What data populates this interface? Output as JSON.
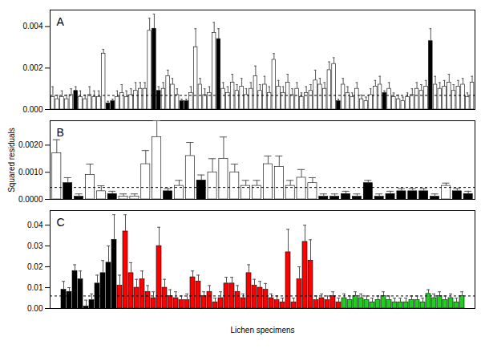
{
  "chart_data": [
    {
      "type": "bar",
      "title": "A",
      "categories": [
        null,
        null,
        null,
        null,
        null,
        null,
        null,
        null,
        null,
        null,
        null,
        null,
        null,
        null,
        null,
        null,
        null,
        null,
        null,
        null,
        null,
        null,
        null,
        null,
        null,
        null,
        null,
        null,
        null,
        null,
        null,
        null,
        null,
        null,
        null,
        null,
        null,
        null,
        null,
        null,
        null,
        null,
        null,
        null,
        null,
        null,
        null,
        null,
        null,
        null,
        null,
        null,
        null,
        null,
        null,
        null,
        null,
        null,
        null,
        null,
        null,
        null,
        null,
        null,
        null,
        null,
        null,
        null,
        null,
        null,
        null,
        null,
        null,
        null,
        null,
        null,
        null,
        null,
        null,
        null,
        null,
        null,
        null,
        null,
        null,
        null,
        null,
        null,
        null,
        null,
        null,
        null
      ],
      "values": [
        0.0006,
        0.0005,
        0.0006,
        0.0005,
        0.0007,
        0.0009,
        0.0006,
        0.0005,
        0.0007,
        0.0006,
        0.0006,
        0.0027,
        0.0003,
        0.0004,
        0.0006,
        0.0008,
        0.0006,
        0.0007,
        0.0009,
        0.001,
        0.001,
        0.0038,
        0.0039,
        0.0009,
        0.001,
        0.0016,
        0.0012,
        0.0007,
        0.0004,
        0.0004,
        0.0008,
        0.003,
        0.0012,
        0.0007,
        0.0008,
        0.0037,
        0.0034,
        0.001,
        0.0008,
        0.0013,
        0.0009,
        0.0011,
        0.0007,
        0.001,
        0.0016,
        0.0009,
        0.0012,
        0.0008,
        0.0024,
        0.0011,
        0.0008,
        0.0013,
        0.0007,
        0.001,
        0.0006,
        0.0008,
        0.0009,
        0.0014,
        0.0012,
        0.001,
        0.0019,
        0.0022,
        0.0004,
        0.0012,
        0.0008,
        0.0006,
        0.001,
        0.0005,
        0.0004,
        0.0007,
        0.0011,
        0.0012,
        0.0008,
        0.001,
        0.0006,
        0.0005,
        0.0004,
        0.0006,
        0.0007,
        0.001,
        0.0009,
        0.0011,
        0.0033,
        0.0012,
        0.001,
        0.0011,
        0.0013,
        0.0009,
        0.0011,
        0.0012,
        0.0006,
        0.0013
      ],
      "errors": [
        0.0005,
        0.0002,
        0.0003,
        0.0002,
        0.0003,
        0.0002,
        0.0003,
        0.0002,
        0.0004,
        0.0003,
        0.0003,
        0.0002,
        0.0001,
        0.0001,
        0.0003,
        0.0004,
        0.0003,
        0.0003,
        0.0004,
        0.0003,
        0.0003,
        0.0006,
        0.0007,
        0.0002,
        0.0003,
        0.0003,
        0.0003,
        0.0003,
        0.0001,
        0.0001,
        0.0003,
        0.0009,
        0.0003,
        0.0003,
        0.0003,
        0.0005,
        0.0005,
        0.0003,
        0.0003,
        0.0004,
        0.0003,
        0.0004,
        0.0003,
        0.0003,
        0.0005,
        0.0003,
        0.0004,
        0.0003,
        0.0003,
        0.0003,
        0.0003,
        0.0004,
        0.0003,
        0.0003,
        0.0002,
        0.0003,
        0.0003,
        0.0005,
        0.0003,
        0.0003,
        0.0004,
        0.0003,
        0.0001,
        0.0003,
        0.0003,
        0.0002,
        0.0003,
        0.0002,
        0.0002,
        0.0003,
        0.0003,
        0.0004,
        0.0001,
        0.0003,
        0.0002,
        0.0002,
        0.0002,
        0.0002,
        0.0003,
        0.0003,
        0.0003,
        0.0003,
        0.0006,
        0.0004,
        0.0003,
        0.0003,
        0.0004,
        0.0003,
        0.0003,
        0.0003,
        0.0002,
        0.0003
      ],
      "colors": [
        "#ffffff",
        "#ffffff",
        "#ffffff",
        "#ffffff",
        "#ffffff",
        "#000000",
        "#ffffff",
        "#ffffff",
        "#ffffff",
        "#ffffff",
        "#ffffff",
        "#ffffff",
        "#000000",
        "#000000",
        "#ffffff",
        "#ffffff",
        "#ffffff",
        "#ffffff",
        "#ffffff",
        "#ffffff",
        "#ffffff",
        "#ffffff",
        "#000000",
        "#000000",
        "#ffffff",
        "#ffffff",
        "#ffffff",
        "#ffffff",
        "#000000",
        "#000000",
        "#ffffff",
        "#ffffff",
        "#ffffff",
        "#ffffff",
        "#ffffff",
        "#ffffff",
        "#000000",
        "#ffffff",
        "#ffffff",
        "#ffffff",
        "#ffffff",
        "#ffffff",
        "#ffffff",
        "#ffffff",
        "#ffffff",
        "#ffffff",
        "#ffffff",
        "#ffffff",
        "#ffffff",
        "#ffffff",
        "#ffffff",
        "#ffffff",
        "#ffffff",
        "#ffffff",
        "#ffffff",
        "#ffffff",
        "#ffffff",
        "#ffffff",
        "#ffffff",
        "#ffffff",
        "#ffffff",
        "#ffffff",
        "#000000",
        "#ffffff",
        "#ffffff",
        "#ffffff",
        "#ffffff",
        "#ffffff",
        "#ffffff",
        "#ffffff",
        "#ffffff",
        "#ffffff",
        "#000000",
        "#ffffff",
        "#ffffff",
        "#ffffff",
        "#ffffff",
        "#ffffff",
        "#ffffff",
        "#ffffff",
        "#ffffff",
        "#ffffff",
        "#000000",
        "#ffffff",
        "#ffffff",
        "#ffffff",
        "#ffffff",
        "#ffffff",
        "#ffffff",
        "#ffffff",
        "#ffffff",
        "#ffffff"
      ],
      "reference_line": 0.00068,
      "ylim": [
        0,
        0.0048
      ],
      "yticks": [
        {
          "value": 0,
          "label": "0.000"
        },
        0.002,
        0.004
      ],
      "tick_labels": "y"
    },
    {
      "type": "bar",
      "title": "B",
      "y_label": "Squared residuals",
      "categories": [
        null,
        null,
        null,
        null,
        null,
        null,
        null,
        null,
        null,
        null,
        null,
        null,
        null,
        null,
        null,
        null,
        null,
        null,
        null,
        null,
        null,
        null,
        null,
        null,
        null,
        null,
        null,
        null,
        null,
        null,
        null,
        null,
        null,
        null,
        null,
        null,
        null,
        null
      ],
      "values": [
        0.0017,
        0.0006,
        0.0001,
        0.0009,
        0.0003,
        0.0002,
        0.0001,
        0.0001,
        0.0013,
        0.0023,
        0.0003,
        0.0005,
        0.0016,
        0.0007,
        0.001,
        0.0015,
        0.001,
        0.0005,
        0.0005,
        0.0013,
        0.0012,
        0.0005,
        0.0008,
        0.0006,
        0.0001,
        0.0001,
        0.0002,
        0.0001,
        0.0006,
        0.0001,
        0.0002,
        0.0003,
        0.0003,
        0.0003,
        0.0001,
        0.0005,
        0.0003,
        0.0002
      ],
      "errors": [
        0.0005,
        0.0002,
        0.0001,
        0.0004,
        0.0002,
        0.0001,
        0.0001,
        0.0001,
        0.0005,
        0.0006,
        0.0001,
        0.0002,
        0.0005,
        0.0002,
        0.0005,
        0.0008,
        0.0003,
        0.0002,
        0.0002,
        0.0003,
        0.0004,
        0.0002,
        0.0003,
        0.0002,
        0.0001,
        0.0001,
        0.0001,
        0.0001,
        0.0001,
        0.0001,
        0.0001,
        0.0001,
        0.0001,
        0.0001,
        0.0001,
        0.0001,
        0.0001,
        0.0001
      ],
      "colors": [
        "#ffffff",
        "#000000",
        "#000000",
        "#ffffff",
        "#ffffff",
        "#000000",
        "#ffffff",
        "#ffffff",
        "#ffffff",
        "#ffffff",
        "#000000",
        "#ffffff",
        "#ffffff",
        "#000000",
        "#ffffff",
        "#ffffff",
        "#ffffff",
        "#ffffff",
        "#ffffff",
        "#ffffff",
        "#ffffff",
        "#ffffff",
        "#ffffff",
        "#ffffff",
        "#000000",
        "#000000",
        "#000000",
        "#000000",
        "#000000",
        "#000000",
        "#000000",
        "#000000",
        "#000000",
        "#000000",
        "#000000",
        "#ffffff",
        "#000000",
        "#000000"
      ],
      "reference_line": 0.00044,
      "ylim": [
        0,
        0.0029
      ],
      "yticks": [
        {
          "value": 0,
          "label": "0.0000"
        },
        {
          "value": 0.001,
          "label": "0.0010"
        },
        {
          "value": 0.002,
          "label": "0.0020"
        }
      ],
      "tick_labels": "y"
    },
    {
      "type": "bar",
      "title": "C",
      "x_label": "Lichen specimens",
      "categories": [
        null,
        null,
        null,
        null,
        null,
        null,
        null,
        null,
        null,
        null,
        null,
        null,
        null,
        null,
        null,
        null,
        null,
        null,
        null,
        null,
        null,
        null,
        null,
        null,
        null,
        null,
        null,
        null,
        null,
        null,
        null,
        null,
        null,
        null,
        null,
        null,
        null,
        null,
        null,
        null,
        null,
        null,
        null,
        null,
        null,
        null,
        null,
        null,
        null,
        null,
        null,
        null,
        null,
        null,
        null,
        null,
        null,
        null,
        null,
        null,
        null,
        null,
        null,
        null,
        null,
        null,
        null,
        null,
        null,
        null,
        null,
        null
      ],
      "values": [
        0.009,
        0.008,
        0.018,
        0.014,
        0.001,
        0.004,
        0.012,
        0.017,
        0.022,
        0.033,
        0.011,
        0.037,
        0.017,
        0.01,
        0.014,
        0.008,
        0.005,
        0.03,
        0.01,
        0.006,
        0.005,
        0.004,
        0.004,
        0.015,
        0.013,
        0.006,
        0.008,
        0.003,
        0.005,
        0.012,
        0.012,
        0.008,
        0.005,
        0.017,
        0.011,
        0.01,
        0.009,
        0.005,
        0.004,
        0.003,
        0.027,
        0.003,
        0.014,
        0.032,
        0.023,
        0.004,
        0.005,
        0.004,
        0.006,
        0.003,
        0.005,
        0.004,
        0.006,
        0.005,
        0.004,
        0.003,
        0.004,
        0.006,
        0.004,
        0.003,
        0.003,
        0.003,
        0.004,
        0.004,
        0.003,
        0.007,
        0.005,
        0.006,
        0.004,
        0.005,
        0.003,
        0.006
      ],
      "errors": [
        0.004,
        0.002,
        0.003,
        0.004,
        0.003,
        0.003,
        0.004,
        0.006,
        0.008,
        0.012,
        0.005,
        0.008,
        0.005,
        0.004,
        0.004,
        0.003,
        0.003,
        0.009,
        0.004,
        0.003,
        0.003,
        0.002,
        0.003,
        0.003,
        0.003,
        0.002,
        0.003,
        0.002,
        0.003,
        0.003,
        0.003,
        0.003,
        0.002,
        0.004,
        0.003,
        0.003,
        0.003,
        0.002,
        0.002,
        0.002,
        0.011,
        0.002,
        0.006,
        0.008,
        0.01,
        0.002,
        0.002,
        0.002,
        0.002,
        0.002,
        0.002,
        0.002,
        0.002,
        0.002,
        0.002,
        0.002,
        0.002,
        0.002,
        0.002,
        0.002,
        0.002,
        0.002,
        0.002,
        0.002,
        0.002,
        0.002,
        0.002,
        0.002,
        0.002,
        0.002,
        0.002,
        0.002
      ],
      "colors": [
        "#000000",
        "#000000",
        "#000000",
        "#000000",
        "#000000",
        "#000000",
        "#000000",
        "#000000",
        "#000000",
        "#000000",
        "#ff0000",
        "#ff0000",
        "#ff0000",
        "#ff0000",
        "#ff0000",
        "#ff0000",
        "#ff0000",
        "#ff0000",
        "#ff0000",
        "#ff0000",
        "#ff0000",
        "#ff0000",
        "#ff0000",
        "#ff0000",
        "#ff0000",
        "#ff0000",
        "#ff0000",
        "#ff0000",
        "#ff0000",
        "#ff0000",
        "#ff0000",
        "#ff0000",
        "#ff0000",
        "#ff0000",
        "#ff0000",
        "#ff0000",
        "#ff0000",
        "#ff0000",
        "#ff0000",
        "#ff0000",
        "#ff0000",
        "#ff0000",
        "#ff0000",
        "#ff0000",
        "#ff0000",
        "#ff0000",
        "#ff0000",
        "#ff0000",
        "#ff0000",
        "#ff0000",
        "#22cc22",
        "#22cc22",
        "#22cc22",
        "#22cc22",
        "#22cc22",
        "#22cc22",
        "#22cc22",
        "#22cc22",
        "#22cc22",
        "#22cc22",
        "#22cc22",
        "#22cc22",
        "#22cc22",
        "#22cc22",
        "#22cc22",
        "#22cc22",
        "#22cc22",
        "#22cc22",
        "#22cc22",
        "#22cc22",
        "#22cc22",
        "#22cc22"
      ],
      "reference_line": 0.006,
      "ylim": [
        0,
        0.047
      ],
      "yticks": [
        {
          "value": 0,
          "label": "0.00"
        },
        0.01,
        0.02,
        0.03,
        0.04
      ],
      "tick_labels": "y"
    }
  ]
}
